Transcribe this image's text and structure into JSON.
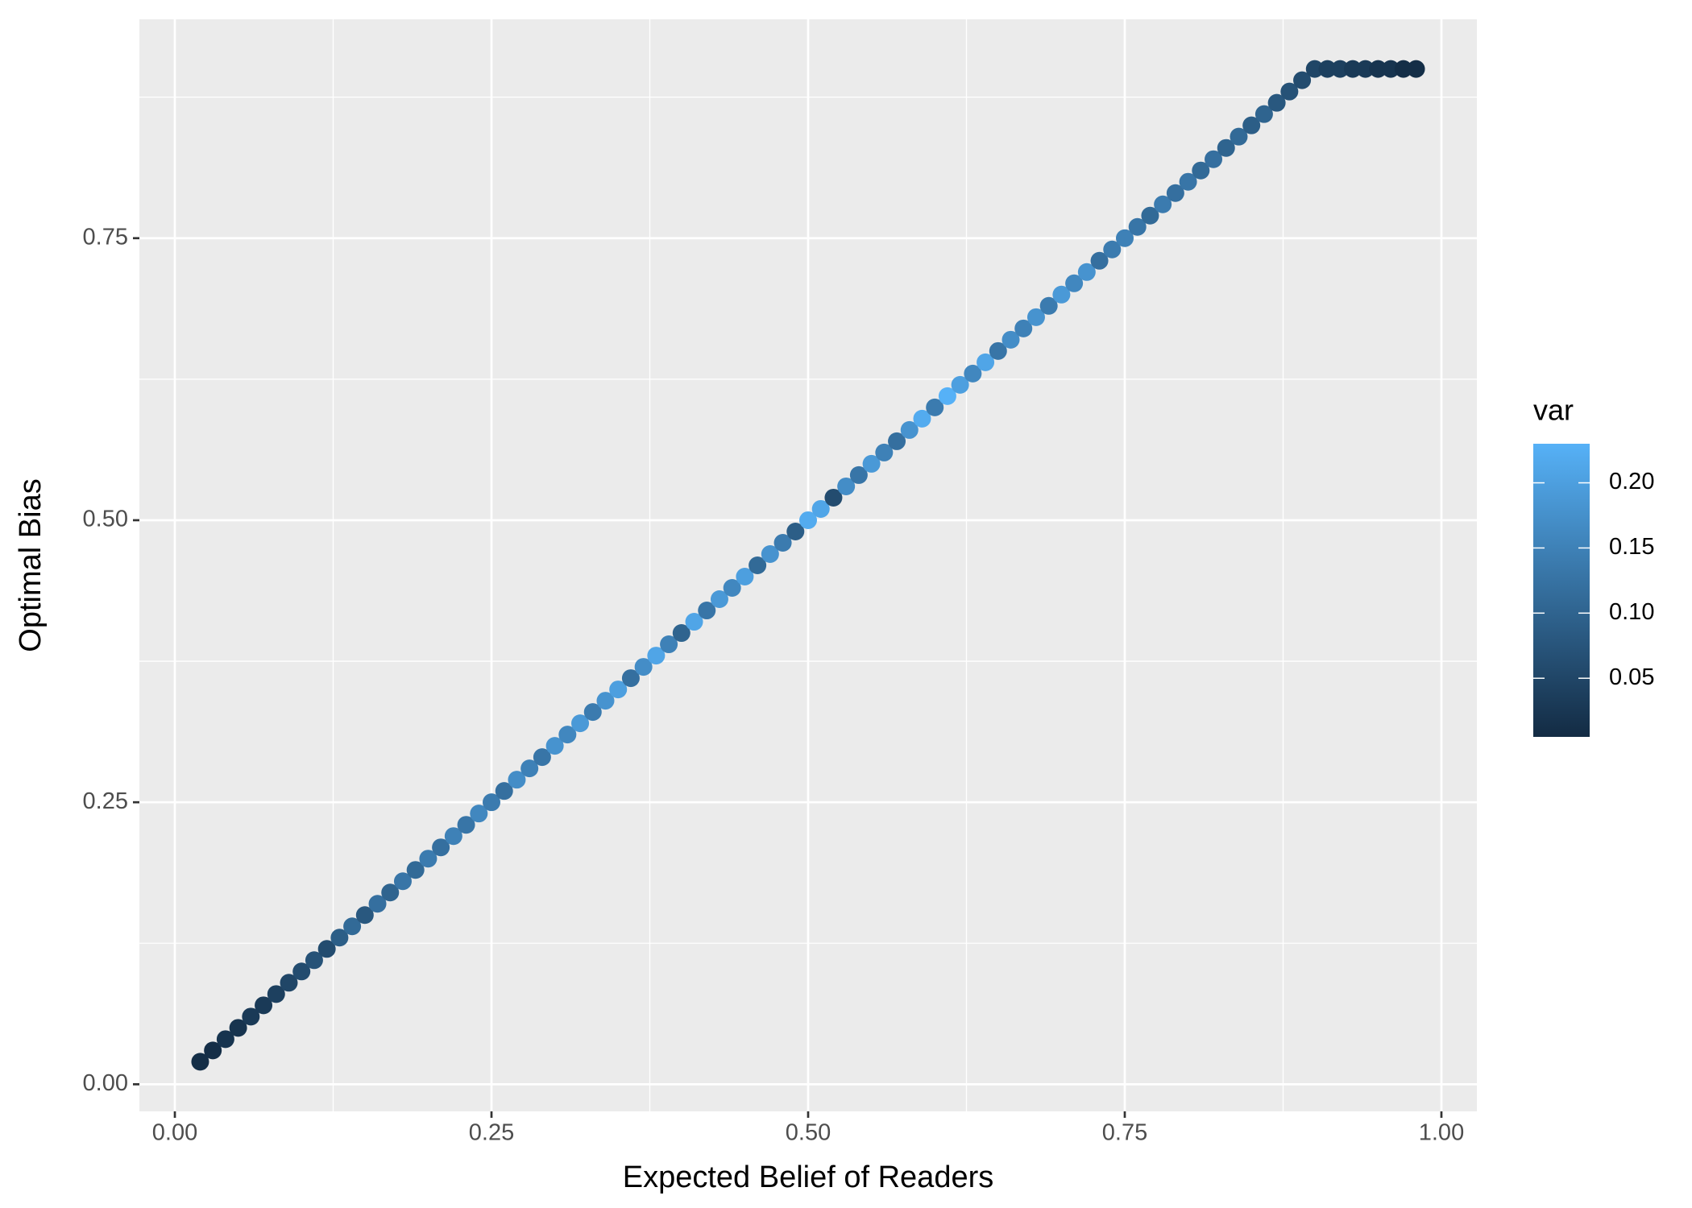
{
  "chart_data": {
    "type": "scatter",
    "x_label": "Expected Belief of Readers",
    "y_label": "Optimal Bias",
    "legend_title": "var",
    "xlim": [
      -0.028,
      1.028
    ],
    "ylim": [
      -0.024,
      0.944
    ],
    "xticks": [
      {
        "value": 0,
        "label": "0.00"
      },
      0.25,
      {
        "value": 0.5,
        "label": "0.50"
      },
      0.75,
      {
        "value": 1,
        "label": "1.00"
      }
    ],
    "yticks": [
      {
        "value": 0,
        "label": "0.00"
      },
      0.25,
      {
        "value": 0.5,
        "label": "0.50"
      },
      0.75
    ],
    "minor_xticks": [
      0.125,
      0.375,
      0.625,
      0.875
    ],
    "minor_yticks": [
      0.125,
      0.375,
      0.625,
      0.875
    ],
    "grid": true,
    "color_low": "#132B43",
    "color_high": "#56B1F7",
    "colorlim": [
      0.005,
      0.23
    ],
    "colorticks": [
      0.05,
      {
        "value": 0.1,
        "label": "0.10"
      },
      0.15,
      {
        "value": 0.2,
        "label": "0.20"
      }
    ],
    "x": [
      0.02,
      0.03,
      0.04,
      0.05,
      0.06,
      0.07,
      0.08,
      0.09,
      0.1,
      0.11,
      0.12,
      0.13,
      0.14,
      0.15,
      0.16,
      0.17,
      0.18,
      0.19,
      0.2,
      0.21,
      0.22,
      0.23,
      0.24,
      0.25,
      0.26,
      0.27,
      0.28,
      0.29,
      0.3,
      0.31,
      0.32,
      0.33,
      0.34,
      0.35,
      0.36,
      0.37,
      0.38,
      0.39,
      0.4,
      0.41,
      0.42,
      0.43,
      0.44,
      0.45,
      0.46,
      0.47,
      0.48,
      0.49,
      0.5,
      0.51,
      0.52,
      0.53,
      0.54,
      0.55,
      0.56,
      0.57,
      0.58,
      0.59,
      0.6,
      0.61,
      0.62,
      0.63,
      0.64,
      0.65,
      0.66,
      0.67,
      0.68,
      0.69,
      0.7,
      0.71,
      0.72,
      0.73,
      0.74,
      0.75,
      0.76,
      0.77,
      0.78,
      0.79,
      0.8,
      0.81,
      0.82,
      0.83,
      0.84,
      0.85,
      0.86,
      0.87,
      0.88,
      0.89,
      0.9,
      0.91,
      0.92,
      0.93,
      0.94,
      0.95,
      0.96,
      0.97,
      0.98
    ],
    "values": [
      0.02,
      0.03,
      0.04,
      0.05,
      0.06,
      0.07,
      0.08,
      0.09,
      0.1,
      0.11,
      0.12,
      0.13,
      0.14,
      0.15,
      0.16,
      0.17,
      0.18,
      0.19,
      0.2,
      0.21,
      0.22,
      0.23,
      0.24,
      0.25,
      0.26,
      0.27,
      0.28,
      0.29,
      0.3,
      0.31,
      0.32,
      0.33,
      0.34,
      0.35,
      0.36,
      0.37,
      0.38,
      0.39,
      0.4,
      0.41,
      0.42,
      0.43,
      0.44,
      0.45,
      0.46,
      0.47,
      0.48,
      0.49,
      0.5,
      0.51,
      0.52,
      0.53,
      0.54,
      0.55,
      0.56,
      0.57,
      0.58,
      0.59,
      0.6,
      0.61,
      0.62,
      0.63,
      0.64,
      0.65,
      0.66,
      0.67,
      0.68,
      0.69,
      0.7,
      0.71,
      0.72,
      0.73,
      0.74,
      0.75,
      0.76,
      0.77,
      0.78,
      0.79,
      0.8,
      0.81,
      0.82,
      0.83,
      0.84,
      0.85,
      0.86,
      0.87,
      0.88,
      0.89,
      0.9,
      0.9,
      0.9,
      0.9,
      0.9,
      0.9,
      0.9,
      0.9,
      0.9
    ],
    "color_values": [
      0.01,
      0.01,
      0.02,
      0.02,
      0.03,
      0.03,
      0.04,
      0.05,
      0.06,
      0.07,
      0.06,
      0.09,
      0.11,
      0.08,
      0.12,
      0.1,
      0.13,
      0.11,
      0.14,
      0.12,
      0.15,
      0.13,
      0.16,
      0.14,
      0.12,
      0.17,
      0.15,
      0.13,
      0.18,
      0.16,
      0.19,
      0.14,
      0.18,
      0.2,
      0.12,
      0.17,
      0.21,
      0.15,
      0.1,
      0.21,
      0.13,
      0.19,
      0.16,
      0.2,
      0.11,
      0.18,
      0.14,
      0.09,
      0.22,
      0.21,
      0.06,
      0.17,
      0.13,
      0.19,
      0.15,
      0.12,
      0.18,
      0.22,
      0.14,
      0.23,
      0.2,
      0.16,
      0.21,
      0.13,
      0.17,
      0.15,
      0.18,
      0.14,
      0.19,
      0.16,
      0.18,
      0.12,
      0.14,
      0.15,
      0.13,
      0.11,
      0.14,
      0.12,
      0.13,
      0.11,
      0.12,
      0.1,
      0.11,
      0.09,
      0.1,
      0.08,
      0.07,
      0.06,
      0.05,
      0.04,
      0.04,
      0.03,
      0.03,
      0.02,
      0.02,
      0.01,
      0.01
    ]
  }
}
